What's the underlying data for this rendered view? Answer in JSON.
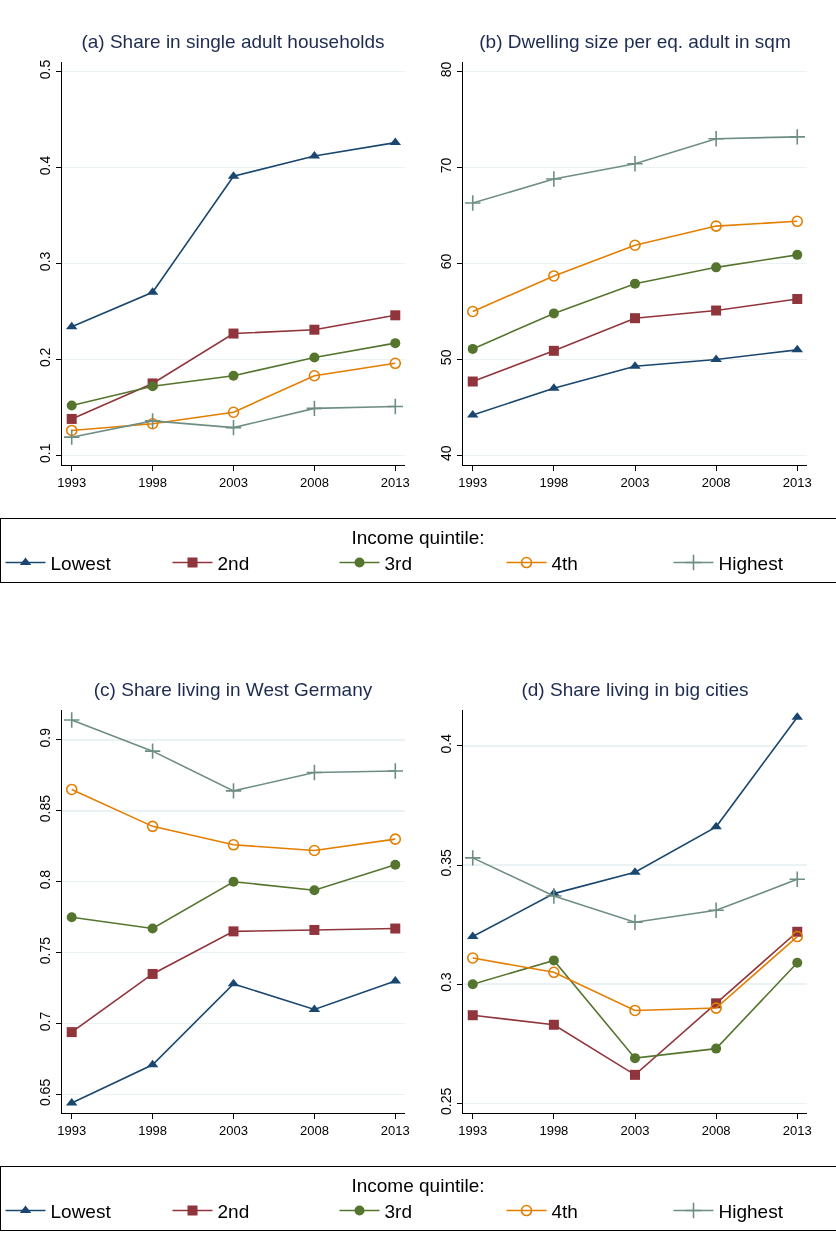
{
  "chart_data": [
    {
      "type": "line",
      "title": "(a) Share in single adult households",
      "x": [
        1993,
        1998,
        2003,
        2008,
        2013
      ],
      "xlim": [
        1992.4,
        2013.6
      ],
      "xticks": [
        1993,
        1998,
        2003,
        2008,
        2013
      ],
      "ylim": [
        0.09,
        0.51
      ],
      "yticks": [
        0.1,
        0.2,
        0.3,
        0.4,
        0.5
      ],
      "grid": "y",
      "legend": "bottom",
      "legend_title": "Income quintile:",
      "series": [
        {
          "name": "Lowest",
          "color": "#1a476f",
          "marker": "triangle",
          "values": [
            0.234,
            0.27,
            0.391,
            0.412,
            0.426
          ]
        },
        {
          "name": "2nd",
          "color": "#90353b",
          "marker": "square",
          "values": [
            0.138,
            0.175,
            0.227,
            0.231,
            0.246
          ]
        },
        {
          "name": "3rd",
          "color": "#55752f",
          "marker": "circle",
          "values": [
            0.152,
            0.172,
            0.183,
            0.202,
            0.217
          ]
        },
        {
          "name": "4th",
          "color": "#e37e00",
          "marker": "circle-open",
          "values": [
            0.126,
            0.133,
            0.145,
            0.183,
            0.196
          ]
        },
        {
          "name": "Highest",
          "color": "#6e8e84",
          "marker": "cross",
          "values": [
            0.119,
            0.136,
            0.129,
            0.149,
            0.151
          ]
        }
      ]
    },
    {
      "type": "line",
      "title": "(b) Dwelling size per eq. adult in sqm",
      "x": [
        1993,
        1998,
        2003,
        2008,
        2013
      ],
      "xlim": [
        1992.4,
        2013.6
      ],
      "xticks": [
        1993,
        1998,
        2003,
        2008,
        2013
      ],
      "ylim": [
        39,
        81
      ],
      "yticks": [
        40,
        50,
        60,
        70,
        80
      ],
      "grid": "y",
      "series": [
        {
          "color": "#1a476f",
          "marker": "triangle",
          "values": [
            44.2,
            47.0,
            49.3,
            50.0,
            51.0
          ]
        },
        {
          "color": "#90353b",
          "marker": "square",
          "values": [
            47.7,
            50.9,
            54.3,
            55.1,
            56.3
          ]
        },
        {
          "color": "#55752f",
          "marker": "circle",
          "values": [
            51.1,
            54.8,
            57.9,
            59.6,
            60.9
          ]
        },
        {
          "color": "#e37e00",
          "marker": "circle-open",
          "values": [
            55.0,
            58.7,
            61.9,
            63.9,
            64.4
          ]
        },
        {
          "color": "#6e8e84",
          "marker": "cross",
          "values": [
            66.3,
            68.8,
            70.4,
            73.0,
            73.2
          ]
        }
      ]
    },
    {
      "type": "line",
      "title": "(c) Share living in West Germany",
      "x": [
        1993,
        1998,
        2003,
        2008,
        2013
      ],
      "xlim": [
        1992.4,
        2013.6
      ],
      "xticks": [
        1993,
        1998,
        2003,
        2008,
        2013
      ],
      "ylim": [
        0.637,
        0.921
      ],
      "yticks": [
        0.65,
        0.7,
        0.75,
        0.8,
        0.85,
        0.9
      ],
      "grid": "y",
      "legend": "bottom",
      "legend_title": "Income quintile:",
      "series": [
        {
          "name": "Lowest",
          "color": "#1a476f",
          "marker": "triangle",
          "values": [
            0.644,
            0.671,
            0.728,
            0.71,
            0.73
          ]
        },
        {
          "name": "2nd",
          "color": "#90353b",
          "marker": "square",
          "values": [
            0.694,
            0.735,
            0.765,
            0.766,
            0.767
          ]
        },
        {
          "name": "3rd",
          "color": "#55752f",
          "marker": "circle",
          "values": [
            0.775,
            0.767,
            0.8,
            0.794,
            0.812
          ]
        },
        {
          "name": "4th",
          "color": "#e37e00",
          "marker": "circle-open",
          "values": [
            0.865,
            0.839,
            0.826,
            0.822,
            0.83
          ]
        },
        {
          "name": "Highest",
          "color": "#6e8e84",
          "marker": "cross",
          "values": [
            0.914,
            0.892,
            0.864,
            0.877,
            0.878
          ]
        }
      ]
    },
    {
      "type": "line",
      "title": "(d) Share living in big cities",
      "x": [
        1993,
        1998,
        2003,
        2008,
        2013
      ],
      "xlim": [
        1992.4,
        2013.6
      ],
      "xticks": [
        1993,
        1998,
        2003,
        2008,
        2013
      ],
      "ylim": [
        0.246,
        0.415
      ],
      "yticks": [
        0.25,
        0.3,
        0.35,
        0.4
      ],
      "grid": "y",
      "series": [
        {
          "color": "#1a476f",
          "marker": "triangle",
          "values": [
            0.32,
            0.338,
            0.347,
            0.366,
            0.412
          ]
        },
        {
          "color": "#90353b",
          "marker": "square",
          "values": [
            0.287,
            0.283,
            0.262,
            0.292,
            0.322
          ]
        },
        {
          "color": "#55752f",
          "marker": "circle",
          "values": [
            0.3,
            0.31,
            0.269,
            0.273,
            0.309
          ]
        },
        {
          "color": "#e37e00",
          "marker": "circle-open",
          "values": [
            0.311,
            0.305,
            0.289,
            0.29,
            0.32
          ]
        },
        {
          "color": "#6e8e84",
          "marker": "cross",
          "values": [
            0.353,
            0.337,
            0.326,
            0.331,
            0.344
          ]
        }
      ]
    }
  ]
}
